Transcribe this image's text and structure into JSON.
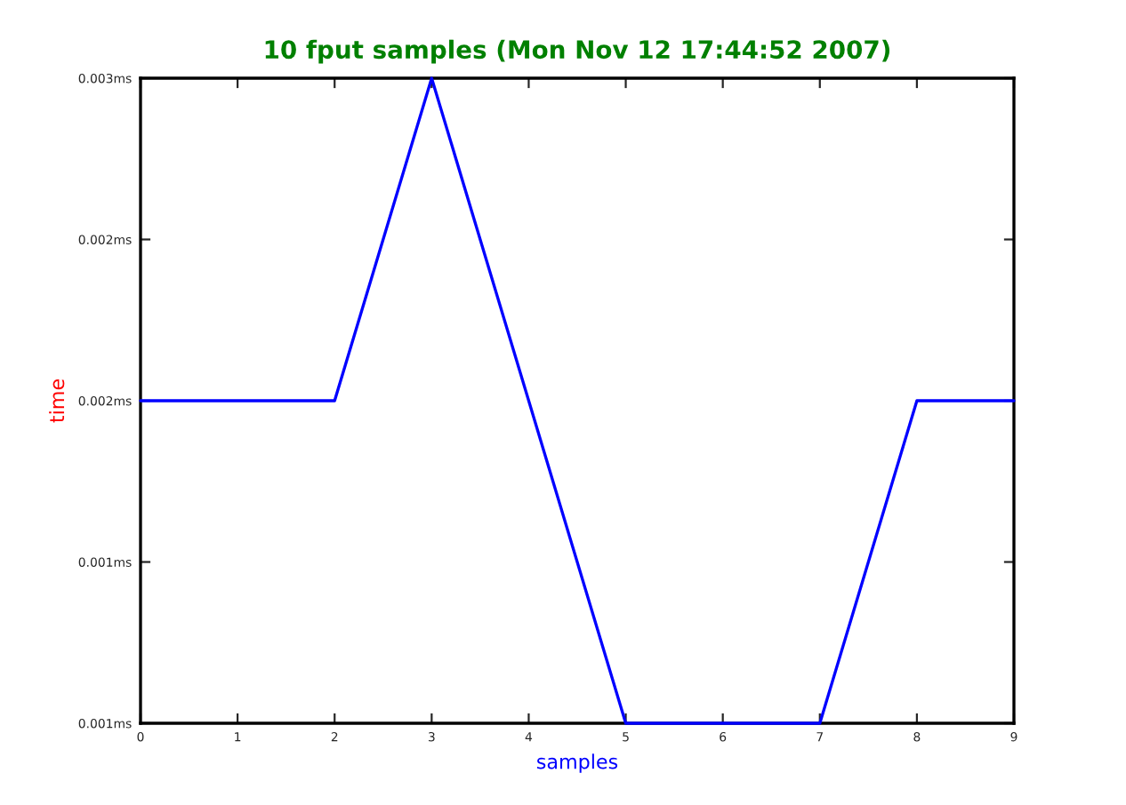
{
  "chart_data": {
    "type": "line",
    "title": "10 fput samples (Mon Nov 12 17:44:52 2007)",
    "xlabel": "samples",
    "ylabel": "time",
    "x": [
      0,
      1,
      2,
      3,
      4,
      5,
      6,
      7,
      8,
      9
    ],
    "series": [
      {
        "color": "#0000ff",
        "values": [
          0.002,
          0.002,
          0.002,
          0.003,
          0.002,
          0.001,
          0.001,
          0.001,
          0.002,
          0.002
        ]
      }
    ],
    "xlim": [
      0,
      9
    ],
    "xticks": [
      0,
      1,
      2,
      3,
      4,
      5,
      6,
      7,
      8,
      9
    ],
    "ylim": [
      0.001,
      0.003
    ],
    "yticks": [
      {
        "value": 0.001,
        "label": "0.001ms"
      },
      {
        "value": 0.0015,
        "label": "0.001ms"
      },
      {
        "value": 0.002,
        "label": "0.002ms"
      },
      {
        "value": 0.0025,
        "label": "0.002ms"
      },
      {
        "value": 0.003,
        "label": "0.003ms"
      }
    ],
    "grid": false,
    "legend": false,
    "marker": "none",
    "line_style": "solid"
  }
}
